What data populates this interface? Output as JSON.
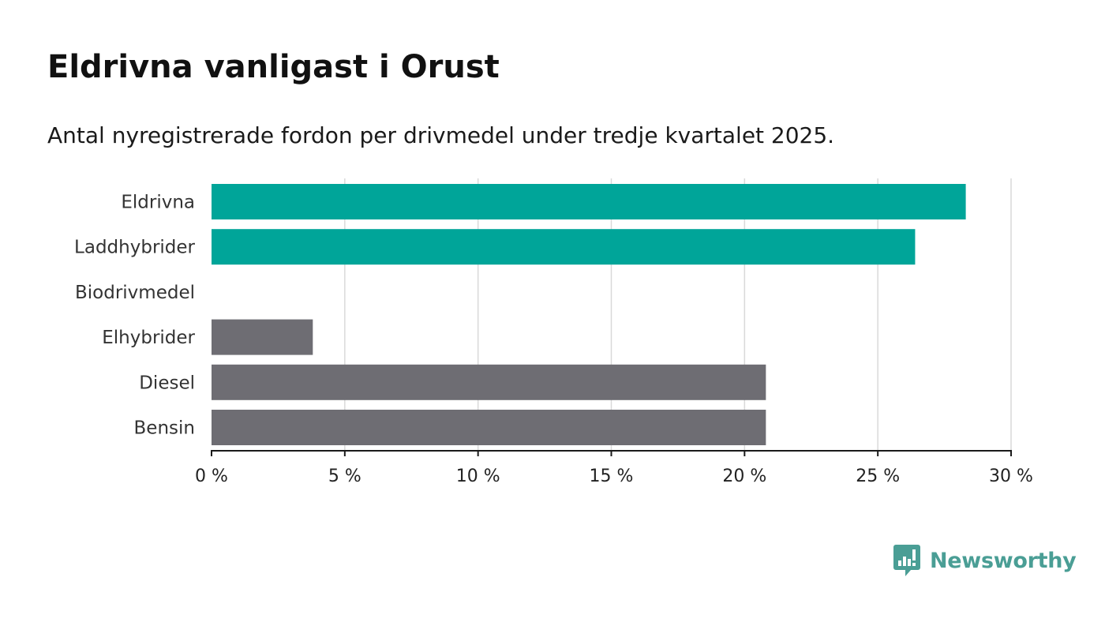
{
  "header": {
    "title": "Eldrivna vanligast i Orust",
    "subtitle": "Antal nyregistrerade fordon per drivmedel under tredje kvartalet 2025."
  },
  "chart_data": {
    "type": "bar",
    "orientation": "horizontal",
    "categories": [
      "Eldrivna",
      "Laddhybrider",
      "Biodrivmedel",
      "Elhybrider",
      "Diesel",
      "Bensin"
    ],
    "values": [
      28.3,
      26.4,
      0,
      3.8,
      20.8,
      20.8
    ],
    "highlighted": [
      true,
      true,
      false,
      false,
      false,
      false
    ],
    "xlim": [
      0,
      30
    ],
    "xticks": [
      0,
      5,
      10,
      15,
      20,
      25,
      30
    ],
    "xtick_labels": [
      "0 %",
      "5 %",
      "10 %",
      "15 %",
      "20 %",
      "25 %",
      "30 %"
    ],
    "grid": true,
    "colors": {
      "highlight": "#00a599",
      "default": "#6e6d73",
      "grid": "#d9d9d9",
      "axis": "#1a1a1a"
    }
  },
  "brand": {
    "name": "Newsworthy",
    "icon": "newsworthy-logo-icon",
    "color": "#4a9e95"
  }
}
